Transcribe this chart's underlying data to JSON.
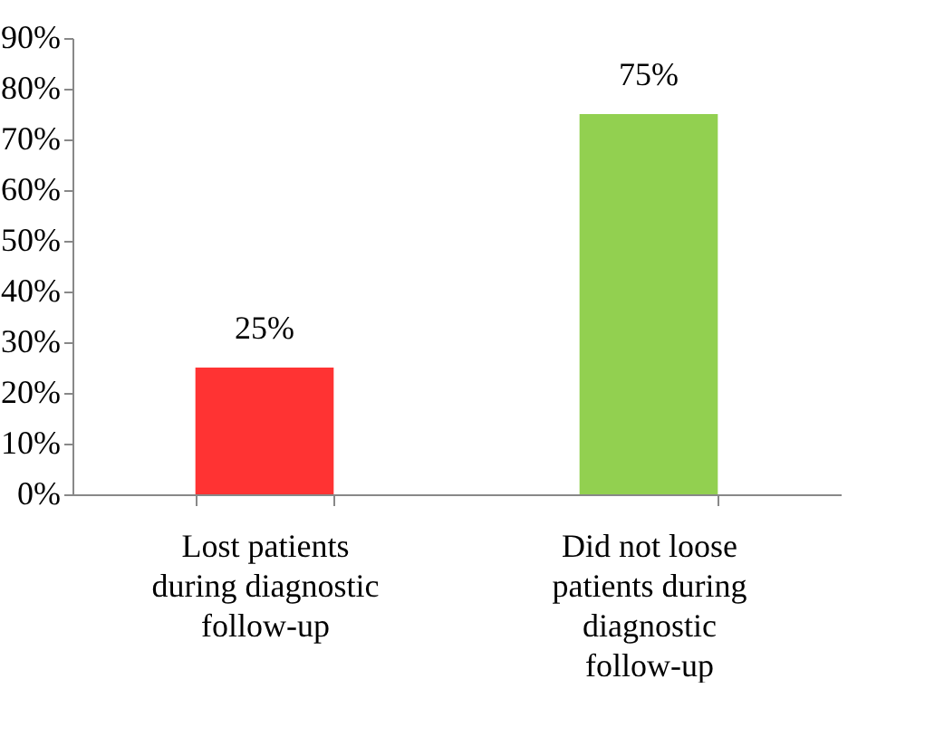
{
  "chart_data": {
    "type": "bar",
    "categories": [
      "Lost patients during diagnostic follow-up",
      "Did not loose patients during diagnostic follow-up"
    ],
    "values": [
      25,
      75
    ],
    "colors": [
      "#ff3333",
      "#92d050"
    ],
    "value_labels": [
      "25%",
      "75%"
    ],
    "ylim": [
      0,
      90
    ],
    "yticks": [
      {
        "value": 0,
        "label": "0%"
      },
      {
        "value": 10,
        "label": "10%"
      },
      {
        "value": 20,
        "label": "20%"
      },
      {
        "value": 30,
        "label": "30%"
      },
      {
        "value": 40,
        "label": "40%"
      },
      {
        "value": 50,
        "label": "50%"
      },
      {
        "value": 60,
        "label": "60%"
      },
      {
        "value": 70,
        "label": "70%"
      },
      {
        "value": 80,
        "label": "80%"
      },
      {
        "value": 90,
        "label": "90%"
      }
    ],
    "grid": false
  }
}
